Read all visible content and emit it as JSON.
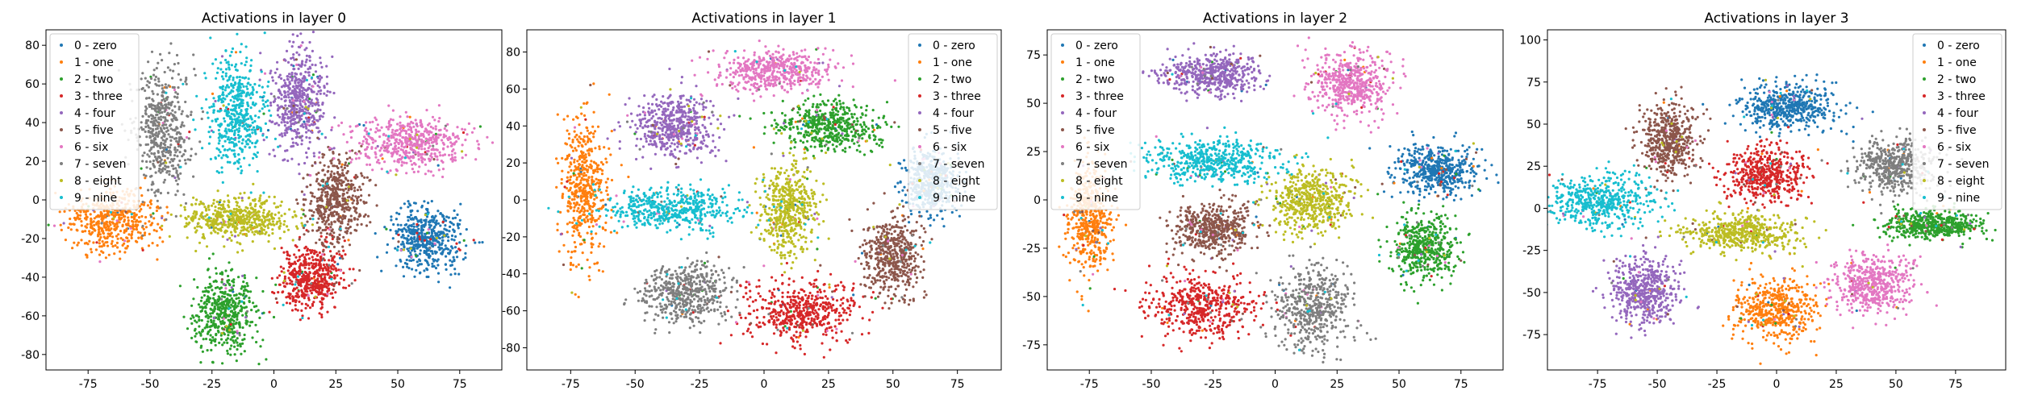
{
  "chart_data": [
    {
      "type": "scatter",
      "title": "Activations in layer 0",
      "xlim": [
        -92,
        92
      ],
      "ylim": [
        -88,
        88
      ],
      "xticks": [
        -75,
        -50,
        -25,
        0,
        25,
        50,
        75
      ],
      "yticks": [
        -80,
        -60,
        -40,
        -20,
        0,
        20,
        40,
        60,
        80
      ],
      "xlabel": "",
      "ylabel": "",
      "legend": "top-left",
      "series": [
        {
          "name": "0 - zero",
          "color": "#1f77b4",
          "cluster": {
            "center": [
              62,
              -20
            ],
            "spread": [
              13,
              15
            ]
          }
        },
        {
          "name": "1 - one",
          "color": "#ff7f0e",
          "cluster": {
            "center": [
              -65,
              -10
            ],
            "spread": [
              17,
              15
            ]
          }
        },
        {
          "name": "2 - two",
          "color": "#2ca02c",
          "cluster": {
            "center": [
              -20,
              -58
            ],
            "spread": [
              12,
              18
            ]
          }
        },
        {
          "name": "3 - three",
          "color": "#d62728",
          "cluster": {
            "center": [
              15,
              -40
            ],
            "spread": [
              12,
              15
            ]
          }
        },
        {
          "name": "4 - four",
          "color": "#9467bd",
          "cluster": {
            "center": [
              10,
              50
            ],
            "spread": [
              10,
              25
            ]
          }
        },
        {
          "name": "5 - five",
          "color": "#8c564b",
          "cluster": {
            "center": [
              25,
              0
            ],
            "spread": [
              10,
              20
            ]
          }
        },
        {
          "name": "6 - six",
          "color": "#e377c2",
          "cluster": {
            "center": [
              55,
              30
            ],
            "spread": [
              20,
              12
            ]
          }
        },
        {
          "name": "7 - seven",
          "color": "#7f7f7f",
          "cluster": {
            "center": [
              -45,
              35
            ],
            "spread": [
              10,
              30
            ]
          }
        },
        {
          "name": "8 - eight",
          "color": "#bcbd22",
          "cluster": {
            "center": [
              -15,
              -10
            ],
            "spread": [
              20,
              10
            ]
          }
        },
        {
          "name": "9 - nine",
          "color": "#17becf",
          "cluster": {
            "center": [
              -15,
              45
            ],
            "spread": [
              10,
              27
            ]
          }
        }
      ]
    },
    {
      "type": "scatter",
      "title": "Activations in layer 1",
      "xlim": [
        -92,
        92
      ],
      "ylim": [
        -92,
        92
      ],
      "xticks": [
        -75,
        -50,
        -25,
        0,
        25,
        50,
        75
      ],
      "yticks": [
        -80,
        -60,
        -40,
        -20,
        0,
        20,
        40,
        60,
        80
      ],
      "xlabel": "",
      "ylabel": "",
      "legend": "top-right",
      "series": [
        {
          "name": "0 - zero",
          "color": "#1f77b4",
          "cluster": {
            "center": [
              65,
              10
            ],
            "spread": [
              10,
              15
            ]
          }
        },
        {
          "name": "1 - one",
          "color": "#ff7f0e",
          "cluster": {
            "center": [
              -70,
              5
            ],
            "spread": [
              8,
              35
            ]
          }
        },
        {
          "name": "2 - two",
          "color": "#2ca02c",
          "cluster": {
            "center": [
              25,
              40
            ],
            "spread": [
              18,
              12
            ]
          }
        },
        {
          "name": "3 - three",
          "color": "#d62728",
          "cluster": {
            "center": [
              15,
              -60
            ],
            "spread": [
              20,
              15
            ]
          }
        },
        {
          "name": "4 - four",
          "color": "#9467bd",
          "cluster": {
            "center": [
              -35,
              40
            ],
            "spread": [
              15,
              15
            ]
          }
        },
        {
          "name": "5 - five",
          "color": "#8c564b",
          "cluster": {
            "center": [
              50,
              -30
            ],
            "spread": [
              10,
              20
            ]
          }
        },
        {
          "name": "6 - six",
          "color": "#e377c2",
          "cluster": {
            "center": [
              5,
              70
            ],
            "spread": [
              22,
              10
            ]
          }
        },
        {
          "name": "7 - seven",
          "color": "#7f7f7f",
          "cluster": {
            "center": [
              -30,
              -50
            ],
            "spread": [
              15,
              15
            ]
          }
        },
        {
          "name": "8 - eight",
          "color": "#bcbd22",
          "cluster": {
            "center": [
              10,
              -5
            ],
            "spread": [
              10,
              22
            ]
          }
        },
        {
          "name": "9 - nine",
          "color": "#17becf",
          "cluster": {
            "center": [
              -35,
              -5
            ],
            "spread": [
              25,
              10
            ]
          }
        }
      ]
    },
    {
      "type": "scatter",
      "title": "Activations in layer 2",
      "xlim": [
        -92,
        92
      ],
      "ylim": [
        -88,
        88
      ],
      "xticks": [
        -75,
        -50,
        -25,
        0,
        25,
        50,
        75
      ],
      "yticks": [
        -75,
        -50,
        -25,
        0,
        25,
        50,
        75
      ],
      "xlabel": "",
      "ylabel": "",
      "legend": "top-left",
      "series": [
        {
          "name": "0 - zero",
          "color": "#1f77b4",
          "cluster": {
            "center": [
              65,
              15
            ],
            "spread": [
              15,
              12
            ]
          }
        },
        {
          "name": "1 - one",
          "color": "#ff7f0e",
          "cluster": {
            "center": [
              -75,
              -10
            ],
            "spread": [
              8,
              25
            ]
          }
        },
        {
          "name": "2 - two",
          "color": "#2ca02c",
          "cluster": {
            "center": [
              60,
              -25
            ],
            "spread": [
              12,
              15
            ]
          }
        },
        {
          "name": "3 - three",
          "color": "#d62728",
          "cluster": {
            "center": [
              -30,
              -55
            ],
            "spread": [
              20,
              15
            ]
          }
        },
        {
          "name": "4 - four",
          "color": "#9467bd",
          "cluster": {
            "center": [
              -25,
              65
            ],
            "spread": [
              18,
              10
            ]
          }
        },
        {
          "name": "5 - five",
          "color": "#8c564b",
          "cluster": {
            "center": [
              -25,
              -15
            ],
            "spread": [
              15,
              12
            ]
          }
        },
        {
          "name": "6 - six",
          "color": "#e377c2",
          "cluster": {
            "center": [
              30,
              60
            ],
            "spread": [
              15,
              15
            ]
          }
        },
        {
          "name": "7 - seven",
          "color": "#7f7f7f",
          "cluster": {
            "center": [
              15,
              -55
            ],
            "spread": [
              15,
              20
            ]
          }
        },
        {
          "name": "8 - eight",
          "color": "#bcbd22",
          "cluster": {
            "center": [
              15,
              0
            ],
            "spread": [
              15,
              15
            ]
          }
        },
        {
          "name": "9 - nine",
          "color": "#17becf",
          "cluster": {
            "center": [
              -25,
              20
            ],
            "spread": [
              25,
              10
            ]
          }
        }
      ]
    },
    {
      "type": "scatter",
      "title": "Activations in layer 3",
      "xlim": [
        -96,
        96
      ],
      "ylim": [
        -96,
        106
      ],
      "xticks": [
        -75,
        -50,
        -25,
        0,
        25,
        50,
        75
      ],
      "yticks": [
        -75,
        -50,
        -25,
        0,
        25,
        50,
        75,
        100
      ],
      "xlabel": "",
      "ylabel": "",
      "legend": "top-right",
      "series": [
        {
          "name": "0 - zero",
          "color": "#1f77b4",
          "cluster": {
            "center": [
              5,
              60
            ],
            "spread": [
              18,
              12
            ]
          }
        },
        {
          "name": "1 - one",
          "color": "#ff7f0e",
          "cluster": {
            "center": [
              0,
              -60
            ],
            "spread": [
              15,
              18
            ]
          }
        },
        {
          "name": "2 - two",
          "color": "#2ca02c",
          "cluster": {
            "center": [
              65,
              -10
            ],
            "spread": [
              18,
              8
            ]
          }
        },
        {
          "name": "3 - three",
          "color": "#d62728",
          "cluster": {
            "center": [
              -5,
              20
            ],
            "spread": [
              15,
              15
            ]
          }
        },
        {
          "name": "4 - four",
          "color": "#9467bd",
          "cluster": {
            "center": [
              -55,
              -50
            ],
            "spread": [
              12,
              18
            ]
          }
        },
        {
          "name": "5 - five",
          "color": "#8c564b",
          "cluster": {
            "center": [
              -45,
              40
            ],
            "spread": [
              10,
              20
            ]
          }
        },
        {
          "name": "6 - six",
          "color": "#e377c2",
          "cluster": {
            "center": [
              40,
              -45
            ],
            "spread": [
              15,
              15
            ]
          }
        },
        {
          "name": "7 - seven",
          "color": "#7f7f7f",
          "cluster": {
            "center": [
              50,
              25
            ],
            "spread": [
              15,
              15
            ]
          }
        },
        {
          "name": "8 - eight",
          "color": "#bcbd22",
          "cluster": {
            "center": [
              -15,
              -15
            ],
            "spread": [
              22,
              10
            ]
          }
        },
        {
          "name": "9 - nine",
          "color": "#17becf",
          "cluster": {
            "center": [
              -75,
              5
            ],
            "spread": [
              20,
              15
            ]
          }
        }
      ]
    }
  ]
}
